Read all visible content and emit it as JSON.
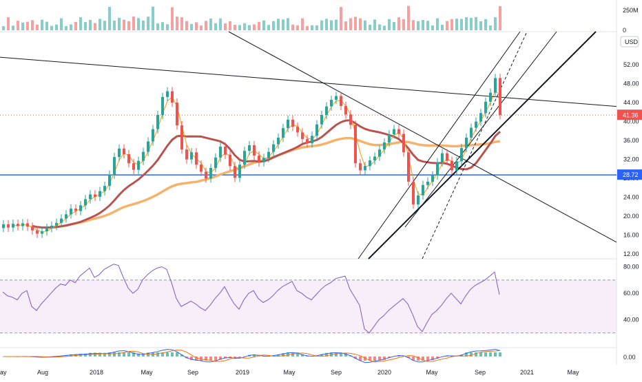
{
  "chart_data": {
    "type": "candlestick",
    "currency_label": "USD",
    "x_ticks": [
      "ay",
      "Aug",
      "2018",
      "May",
      "Sep",
      "2019",
      "May",
      "Sep",
      "2020",
      "May",
      "Sep",
      "2021",
      "May"
    ],
    "volume_axis": {
      "ticks": [
        "250M",
        "0"
      ]
    },
    "price_axis": {
      "ticks": [
        "52.00",
        "48.00",
        "44.00",
        "40.00",
        "36.00",
        "32.00",
        "28.00",
        "24.00",
        "20.00",
        "16.00",
        "12.00"
      ],
      "range": [
        11,
        59
      ]
    },
    "price_badges": {
      "last_price": "41.36",
      "horizontal_level": "28.72"
    },
    "rsi_axis": {
      "ticks": [
        "80.00",
        "60.00",
        "40.00"
      ],
      "range": [
        20,
        85
      ],
      "band": [
        30,
        70
      ]
    },
    "macd_axis": {
      "ticks": [
        "0.00"
      ]
    },
    "candles": [
      {
        "x": 5,
        "o": 17.5,
        "c": 18.3
      },
      {
        "x": 12,
        "o": 18.3,
        "c": 17.6
      },
      {
        "x": 19,
        "o": 17.6,
        "c": 18.4
      },
      {
        "x": 26,
        "o": 18.4,
        "c": 17.9
      },
      {
        "x": 33,
        "o": 17.9,
        "c": 18.5
      },
      {
        "x": 40,
        "o": 18.5,
        "c": 17.8
      },
      {
        "x": 47,
        "o": 17.8,
        "c": 17.0
      },
      {
        "x": 54,
        "o": 17.0,
        "c": 16.3
      },
      {
        "x": 61,
        "o": 16.3,
        "c": 16.8
      },
      {
        "x": 68,
        "o": 16.8,
        "c": 17.5
      },
      {
        "x": 75,
        "o": 17.5,
        "c": 18.0
      },
      {
        "x": 82,
        "o": 18.0,
        "c": 18.6
      },
      {
        "x": 89,
        "o": 18.6,
        "c": 19.5
      },
      {
        "x": 96,
        "o": 19.5,
        "c": 20.4
      },
      {
        "x": 103,
        "o": 20.4,
        "c": 21.6
      },
      {
        "x": 110,
        "o": 21.6,
        "c": 21.1
      },
      {
        "x": 117,
        "o": 21.1,
        "c": 22.3
      },
      {
        "x": 124,
        "o": 22.3,
        "c": 23.6
      },
      {
        "x": 131,
        "o": 23.6,
        "c": 24.6
      },
      {
        "x": 138,
        "o": 24.6,
        "c": 24.1
      },
      {
        "x": 145,
        "o": 24.1,
        "c": 25.3
      },
      {
        "x": 152,
        "o": 25.3,
        "c": 26.4
      },
      {
        "x": 159,
        "o": 26.4,
        "c": 28.8
      },
      {
        "x": 166,
        "o": 28.8,
        "c": 32.5
      },
      {
        "x": 173,
        "o": 32.5,
        "c": 34.3
      },
      {
        "x": 180,
        "o": 34.3,
        "c": 33.1
      },
      {
        "x": 187,
        "o": 33.1,
        "c": 31.2
      },
      {
        "x": 194,
        "o": 31.2,
        "c": 29.8
      },
      {
        "x": 201,
        "o": 29.8,
        "c": 31.7
      },
      {
        "x": 208,
        "o": 31.7,
        "c": 33.6
      },
      {
        "x": 215,
        "o": 33.6,
        "c": 35.8
      },
      {
        "x": 222,
        "o": 35.8,
        "c": 38.4
      },
      {
        "x": 229,
        "o": 38.4,
        "c": 41.4
      },
      {
        "x": 236,
        "o": 41.4,
        "c": 45.2
      },
      {
        "x": 243,
        "o": 45.2,
        "c": 46.4
      },
      {
        "x": 250,
        "o": 46.4,
        "c": 44.0
      },
      {
        "x": 257,
        "o": 44.0,
        "c": 39.2
      },
      {
        "x": 264,
        "o": 39.2,
        "c": 34.1
      },
      {
        "x": 271,
        "o": 34.1,
        "c": 32.0
      },
      {
        "x": 278,
        "o": 32.0,
        "c": 33.5
      },
      {
        "x": 285,
        "o": 33.5,
        "c": 30.9
      },
      {
        "x": 292,
        "o": 30.9,
        "c": 29.4
      },
      {
        "x": 299,
        "o": 29.4,
        "c": 28.0
      },
      {
        "x": 306,
        "o": 28.0,
        "c": 30.2
      },
      {
        "x": 313,
        "o": 30.2,
        "c": 32.4
      },
      {
        "x": 320,
        "o": 32.4,
        "c": 34.7
      },
      {
        "x": 327,
        "o": 34.7,
        "c": 33.0
      },
      {
        "x": 334,
        "o": 33.0,
        "c": 30.6
      },
      {
        "x": 341,
        "o": 30.6,
        "c": 28.1
      },
      {
        "x": 348,
        "o": 28.1,
        "c": 30.9
      },
      {
        "x": 355,
        "o": 30.9,
        "c": 33.8
      },
      {
        "x": 362,
        "o": 33.8,
        "c": 35.0
      },
      {
        "x": 369,
        "o": 35.0,
        "c": 32.8
      },
      {
        "x": 376,
        "o": 32.8,
        "c": 31.4
      },
      {
        "x": 383,
        "o": 31.4,
        "c": 32.3
      },
      {
        "x": 390,
        "o": 32.3,
        "c": 33.6
      },
      {
        "x": 397,
        "o": 33.6,
        "c": 35.2
      },
      {
        "x": 404,
        "o": 35.2,
        "c": 36.6
      },
      {
        "x": 411,
        "o": 36.6,
        "c": 38.6
      },
      {
        "x": 418,
        "o": 38.6,
        "c": 40.4
      },
      {
        "x": 425,
        "o": 40.4,
        "c": 38.9
      },
      {
        "x": 432,
        "o": 38.9,
        "c": 37.7
      },
      {
        "x": 439,
        "o": 37.7,
        "c": 36.3
      },
      {
        "x": 446,
        "o": 36.3,
        "c": 35.4
      },
      {
        "x": 453,
        "o": 35.4,
        "c": 37.0
      },
      {
        "x": 460,
        "o": 37.0,
        "c": 39.4
      },
      {
        "x": 467,
        "o": 39.4,
        "c": 41.4
      },
      {
        "x": 474,
        "o": 41.4,
        "c": 43.2
      },
      {
        "x": 481,
        "o": 43.2,
        "c": 44.6
      },
      {
        "x": 488,
        "o": 44.6,
        "c": 45.4
      },
      {
        "x": 495,
        "o": 45.4,
        "c": 43.3
      },
      {
        "x": 502,
        "o": 43.3,
        "c": 41.5
      },
      {
        "x": 509,
        "o": 41.5,
        "c": 39.3
      },
      {
        "x": 516,
        "o": 39.3,
        "c": 31.2
      },
      {
        "x": 523,
        "o": 31.2,
        "c": 29.7
      },
      {
        "x": 530,
        "o": 29.7,
        "c": 30.6
      },
      {
        "x": 537,
        "o": 30.6,
        "c": 31.8
      },
      {
        "x": 544,
        "o": 31.8,
        "c": 32.6
      },
      {
        "x": 551,
        "o": 32.6,
        "c": 34.1
      },
      {
        "x": 558,
        "o": 34.1,
        "c": 35.6
      },
      {
        "x": 565,
        "o": 35.6,
        "c": 37.3
      },
      {
        "x": 572,
        "o": 37.3,
        "c": 38.4
      },
      {
        "x": 579,
        "o": 38.4,
        "c": 37.4
      },
      {
        "x": 586,
        "o": 37.4,
        "c": 33.5
      },
      {
        "x": 593,
        "o": 33.5,
        "c": 27.3
      },
      {
        "x": 600,
        "o": 27.3,
        "c": 22.5
      },
      {
        "x": 607,
        "o": 22.5,
        "c": 24.4
      },
      {
        "x": 614,
        "o": 24.4,
        "c": 26.6
      },
      {
        "x": 621,
        "o": 26.6,
        "c": 27.3
      },
      {
        "x": 628,
        "o": 27.3,
        "c": 28.6
      },
      {
        "x": 635,
        "o": 28.6,
        "c": 31.4
      },
      {
        "x": 642,
        "o": 31.4,
        "c": 33.3
      },
      {
        "x": 649,
        "o": 33.3,
        "c": 31.7
      },
      {
        "x": 656,
        "o": 31.7,
        "c": 29.7
      },
      {
        "x": 663,
        "o": 29.7,
        "c": 31.6
      },
      {
        "x": 670,
        "o": 31.6,
        "c": 34.4
      },
      {
        "x": 677,
        "o": 34.4,
        "c": 36.6
      },
      {
        "x": 684,
        "o": 36.6,
        "c": 38.7
      },
      {
        "x": 691,
        "o": 38.7,
        "c": 40.0
      },
      {
        "x": 698,
        "o": 40.0,
        "c": 41.8
      },
      {
        "x": 705,
        "o": 41.8,
        "c": 44.2
      },
      {
        "x": 712,
        "o": 44.2,
        "c": 46.1
      },
      {
        "x": 719,
        "o": 46.1,
        "c": 49.2
      },
      {
        "x": 726,
        "o": 49.2,
        "c": 41.4
      }
    ],
    "rsi_values": [
      61,
      58,
      57,
      55,
      60,
      62,
      50,
      47,
      52,
      56,
      60,
      64,
      67,
      66,
      70,
      68,
      73,
      76,
      79,
      72,
      74,
      78,
      80,
      82,
      81,
      72,
      64,
      60,
      63,
      70,
      74,
      77,
      79,
      80,
      78,
      68,
      56,
      50,
      52,
      54,
      52,
      49,
      47,
      51,
      56,
      60,
      65,
      58,
      52,
      48,
      55,
      60,
      62,
      56,
      53,
      55,
      58,
      62,
      65,
      67,
      69,
      62,
      60,
      57,
      55,
      59,
      63,
      66,
      68,
      71,
      72,
      73,
      63,
      57,
      51,
      33,
      30,
      35,
      40,
      43,
      47,
      50,
      53,
      56,
      52,
      44,
      35,
      31,
      38,
      44,
      47,
      51,
      56,
      60,
      56,
      52,
      58,
      63,
      66,
      68,
      70,
      73,
      76,
      59
    ]
  }
}
